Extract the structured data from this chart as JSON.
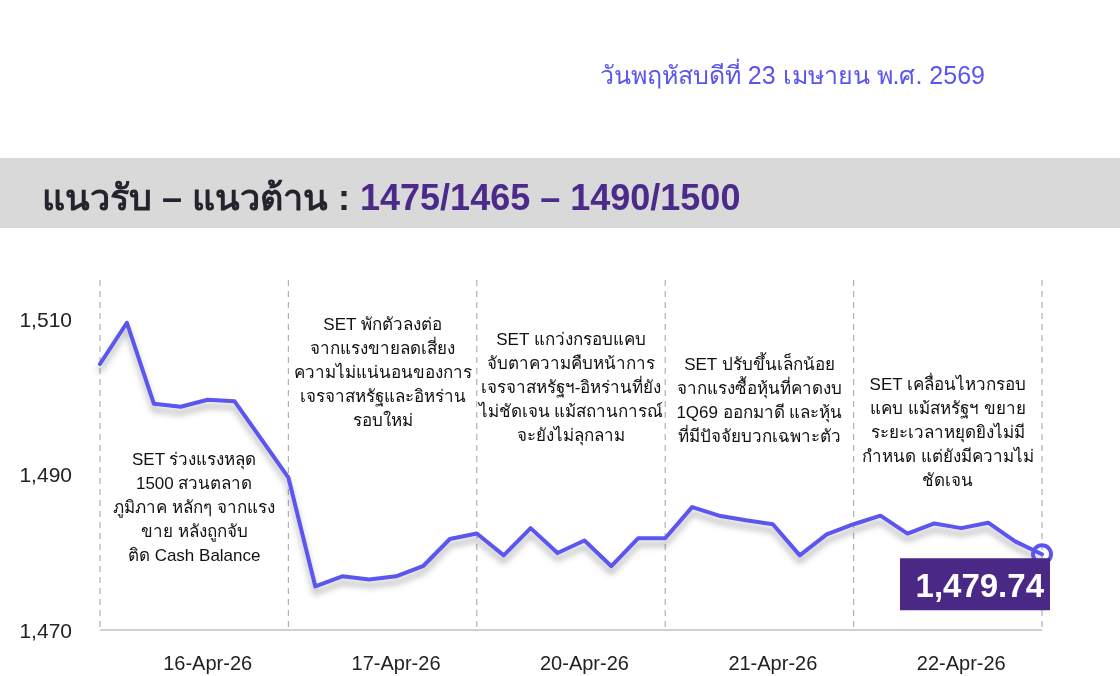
{
  "chart_data": {
    "type": "line",
    "title": "แนวรับ – แนวต้าน : 1475/1465 – 1490/1500",
    "subtitle": "วันพฤหัสบดีที่ 23 เมษายน พ.ศ. 2569",
    "categories": [
      null,
      null,
      null,
      null,
      "16-Apr-26",
      null,
      null,
      null,
      null,
      null,
      null,
      "17-Apr-26",
      null,
      null,
      null,
      null,
      null,
      null,
      "20-Apr-26",
      null,
      null,
      null,
      null,
      null,
      null,
      "21-Apr-26",
      null,
      null,
      null,
      null,
      null,
      null,
      "22-Apr-26",
      null,
      null,
      null
    ],
    "series": [
      {
        "color": "#5b55ee",
        "values": [
          1504.2,
          1509.5,
          1499.1,
          1498.7,
          1499.6,
          1499.4,
          1494.5,
          1489.6,
          1475.6,
          1476.9,
          1476.5,
          1476.9,
          1478.2,
          1481.7,
          1482.4,
          1479.6,
          1483.1,
          1479.9,
          1481.5,
          1478.2,
          1481.8,
          1481.8,
          1485.8,
          1484.7,
          1484.1,
          1483.6,
          1479.6,
          1482.3,
          1483.6,
          1484.7,
          1482.4,
          1483.7,
          1483.1,
          1483.8,
          1481.4,
          1479.74
        ]
      }
    ],
    "ylim": [
      1470,
      1515
    ],
    "yticks": [
      {
        "value": 1470,
        "label": "1,470"
      },
      {
        "value": 1490,
        "label": "1,490"
      },
      {
        "value": 1510,
        "label": "1,510"
      }
    ],
    "annotations": [
      "SET ร่วงแรงหลุด\n1500 สวนตลาด\nภูมิภาค หลักๆ จากแรง\nขาย หลังถูกจับ\nติด Cash Balance",
      "SET พักตัวลงต่อ\nจากแรงขายลดเสี่ยง\nความไม่แน่นอนของการ\nเจรจาสหรัฐและอิหร่าน\nรอบใหม่",
      "SET แกว่งกรอบแคบ\nจับตาความคืบหน้าการ\nเจรจาสหรัฐฯ-อิหร่านที่ยัง\nไม่ชัดเจน แม้สถานการณ์\nจะยังไม่ลุกลาม",
      "SET ปรับขึ้นเล็กน้อย\nจากแรงซื้อหุ้นที่คาดงบ\n1Q69 ออกมาดี และหุ้น\nที่มีปัจจัยบวกเฉพาะตัว",
      "SET เคลื่อนไหวกรอบ\nแคบ แม้สหรัฐฯ ขยาย\nระยะเวลาหยุดยิงไม่มี\nกำหนด แต่ยังมีความไม่\nชัดเจน",
      "1,479.74"
    ],
    "grid": "x",
    "marker": "none",
    "line_style": "solid"
  }
}
